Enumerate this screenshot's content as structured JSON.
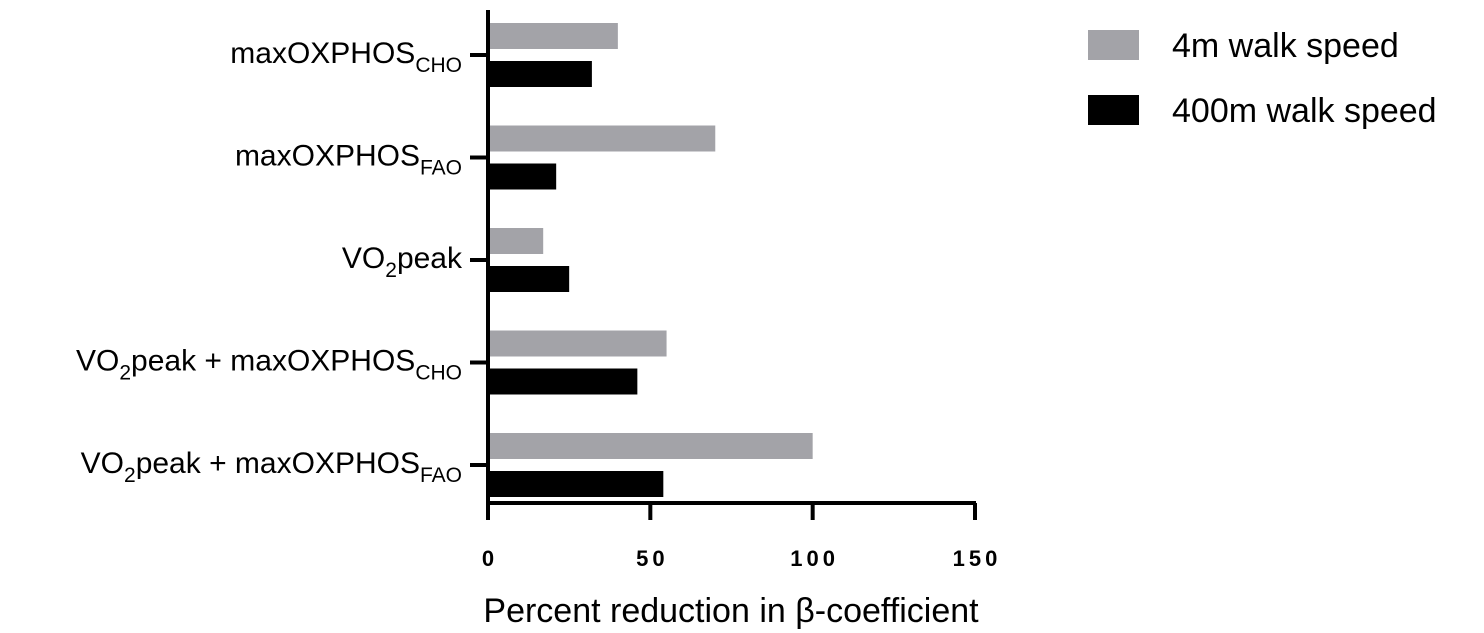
{
  "chart_data": {
    "type": "bar",
    "orientation": "horizontal",
    "categories": [
      {
        "main": "maxOXPHOS",
        "sub": "CHO",
        "label": "maxOXPHOSCHO"
      },
      {
        "main": "maxOXPHOS",
        "sub": "FAO",
        "label": "maxOXPHOSFAO"
      },
      {
        "pre": "VO",
        "sub": "2",
        "post": "peak",
        "label": "VO2peak"
      },
      {
        "pre": "VO",
        "sub": "2",
        "post": "peak + maxOXPHOS",
        "sub2": "CHO",
        "label": "VO2peak + maxOXPHOSCHO"
      },
      {
        "pre": "VO",
        "sub": "2",
        "post": "peak + maxOXPHOS",
        "sub2": "FAO",
        "label": "VO2peak + maxOXPHOSFAO"
      }
    ],
    "series": [
      {
        "name": "4m walk speed",
        "color": "#a3a3a8",
        "values": [
          40,
          70,
          17,
          55,
          100
        ]
      },
      {
        "name": "400m walk speed",
        "color": "#000000",
        "values": [
          32,
          21,
          25,
          46,
          54
        ]
      }
    ],
    "xlabel": "Percent reduction in β-coefficient",
    "xlim": [
      0,
      150
    ],
    "xticks": [
      0,
      50,
      100,
      150
    ],
    "xtick_labels": [
      "0",
      "50",
      "100",
      "150"
    ],
    "grid": false,
    "legend_position": "top-right"
  }
}
